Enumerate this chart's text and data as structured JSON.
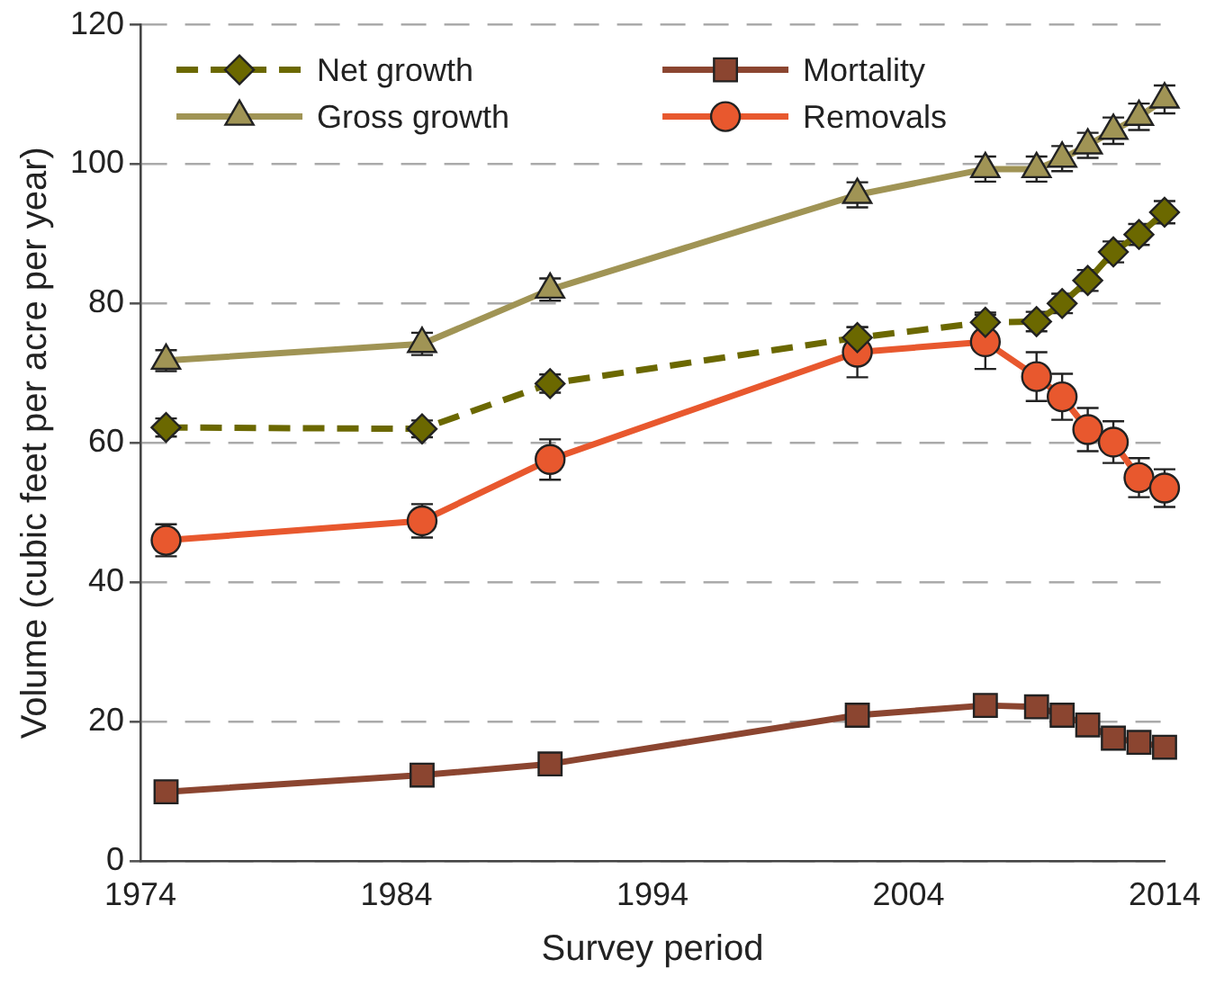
{
  "chart_data": {
    "type": "line",
    "xlabel": "Survey period",
    "ylabel": "Volume (cubic feet per acre per year)",
    "x": [
      1975,
      1985,
      1990,
      2002,
      2007,
      2009,
      2010,
      2011,
      2012,
      2013,
      2014
    ],
    "xlim": [
      1974,
      2014
    ],
    "xticks": [
      1974,
      1984,
      1994,
      2004,
      2014
    ],
    "ylim": [
      0,
      120
    ],
    "yticks": [
      0,
      20,
      40,
      60,
      80,
      100,
      120
    ],
    "grid": "y",
    "legend": "top left",
    "series": [
      {
        "name": "Net growth",
        "color": "#6b6800",
        "marker": "diamond",
        "line_style": "dashed",
        "values": [
          62.2,
          62.0,
          68.5,
          75.1,
          77.3,
          77.4,
          80.0,
          83.3,
          87.4,
          89.9,
          93.1
        ],
        "errors": [
          1.3,
          1.2,
          1.3,
          1.5,
          1.4,
          1.4,
          1.4,
          1.5,
          1.5,
          1.5,
          1.6
        ]
      },
      {
        "name": "Mortality",
        "color": "#8b4530",
        "marker": "square",
        "line_style": "solid",
        "values": [
          9.9,
          12.3,
          13.9,
          20.9,
          22.3,
          22.1,
          20.9,
          19.5,
          17.6,
          17.0,
          16.3
        ]
      },
      {
        "name": "Gross growth",
        "color": "#a09455",
        "marker": "triangle",
        "line_style": "solid",
        "values": [
          71.8,
          74.2,
          82.0,
          95.6,
          99.3,
          99.3,
          100.8,
          102.7,
          104.8,
          106.8,
          109.3
        ],
        "errors": [
          1.5,
          1.6,
          1.6,
          1.8,
          1.8,
          1.8,
          1.8,
          1.8,
          1.9,
          1.9,
          2.0
        ]
      },
      {
        "name": "Removals",
        "color": "#e8582e",
        "marker": "circle",
        "line_style": "solid",
        "values": [
          46.0,
          48.8,
          57.6,
          73.0,
          74.5,
          69.5,
          66.6,
          61.9,
          60.1,
          55.0,
          53.5
        ],
        "errors": [
          2.3,
          2.4,
          2.9,
          3.6,
          3.9,
          3.5,
          3.3,
          3.1,
          3.0,
          2.8,
          2.7
        ]
      }
    ]
  }
}
